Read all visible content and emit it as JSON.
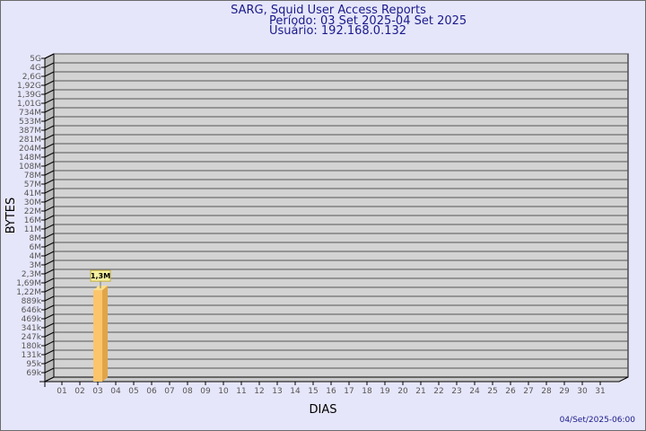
{
  "chart_data": {
    "type": "bar",
    "title": "SARG, Squid User Access Reports",
    "subtitle": [
      "Período: 03 Set 2025-04 Set 2025",
      "Usuário: 192.168.0.132"
    ],
    "xlabel": "DIAS",
    "ylabel": "BYTES",
    "y_scale": "log",
    "yticks": [
      "5G",
      "4G",
      "2,6G",
      "1,92G",
      "1,39G",
      "1,01G",
      "734M",
      "533M",
      "387M",
      "281M",
      "204M",
      "148M",
      "108M",
      "78M",
      "57M",
      "41M",
      "30M",
      "22M",
      "16M",
      "11M",
      "8M",
      "6M",
      "4M",
      "3M",
      "2,3M",
      "1,69M",
      "1,22M",
      "889k",
      "646k",
      "469k",
      "341k",
      "247k",
      "180k",
      "131k",
      "95k",
      "69k"
    ],
    "categories": [
      "01",
      "02",
      "03",
      "04",
      "05",
      "06",
      "07",
      "08",
      "09",
      "10",
      "11",
      "12",
      "13",
      "14",
      "15",
      "16",
      "17",
      "18",
      "19",
      "20",
      "21",
      "22",
      "23",
      "24",
      "25",
      "26",
      "27",
      "28",
      "29",
      "30",
      "31"
    ],
    "bars": [
      {
        "category": "03",
        "value": 1300000,
        "label": "1,3M"
      }
    ],
    "grid": true,
    "colors": {
      "bar_front": "#fcc56b",
      "bar_side": "#e0a548",
      "bar_top": "#ffe08a",
      "wall": "#d3d3d3",
      "background": "#e6e6fa",
      "title": "#1a1a8c"
    }
  },
  "footer": {
    "timestamp": "04/Set/2025-06:00"
  }
}
